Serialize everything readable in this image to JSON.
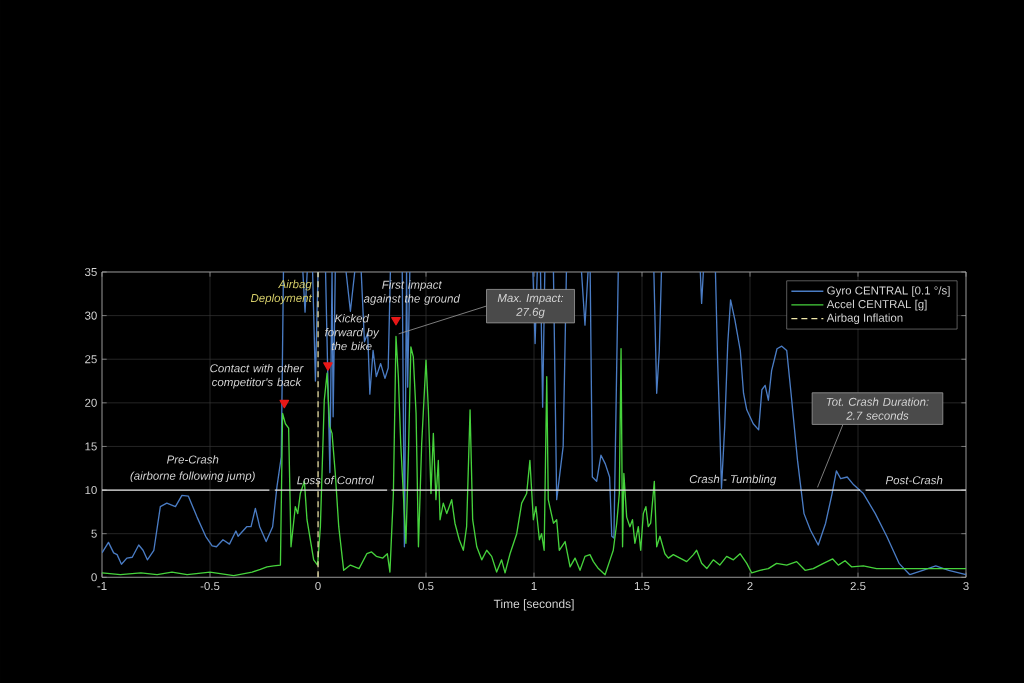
{
  "chart_data": {
    "type": "line",
    "xlabel": "Time [seconds]",
    "xlim": [
      -1,
      3
    ],
    "xticks": [
      -1,
      -0.5,
      0,
      0.5,
      1,
      1.5,
      2,
      2.5,
      3
    ],
    "ylim": [
      0,
      35
    ],
    "yticks": [
      0,
      5,
      10,
      15,
      20,
      25,
      30,
      35
    ],
    "grid": true,
    "legend": "top right",
    "series": [
      {
        "name": "Gyro CENTRAL [0.1 °/s]",
        "color": "#4a7cc4",
        "x": [
          -1,
          -0.97,
          -0.946,
          -0.93,
          -0.91,
          -0.885,
          -0.86,
          -0.83,
          -0.81,
          -0.79,
          -0.76,
          -0.73,
          -0.7,
          -0.66,
          -0.63,
          -0.6,
          -0.56,
          -0.52,
          -0.49,
          -0.47,
          -0.44,
          -0.41,
          -0.38,
          -0.37,
          -0.33,
          -0.31,
          -0.29,
          -0.27,
          -0.24,
          -0.21,
          -0.19,
          -0.17,
          -0.16,
          -0.155,
          -0.07,
          -0.06,
          -0.05,
          -0.04,
          -0.025,
          -0.012,
          0.0,
          0.01,
          0.035,
          0.055,
          0.065,
          0.07,
          0.08,
          0.09,
          0.13,
          0.15,
          0.17,
          0.18,
          0.2,
          0.215,
          0.23,
          0.24,
          0.255,
          0.27,
          0.29,
          0.31,
          0.325,
          0.335,
          0.34,
          0.39,
          0.4,
          0.41,
          0.415,
          0.425,
          0.43,
          0.995,
          1.005,
          1.015,
          1.02,
          1.03,
          1.04,
          1.05,
          1.06,
          1.09,
          1.105,
          1.135,
          1.15,
          1.16,
          1.22,
          1.236,
          1.25,
          1.255,
          1.26,
          1.27,
          1.29,
          1.31,
          1.33,
          1.35,
          1.36,
          1.37,
          1.39,
          1.4,
          1.555,
          1.568,
          1.58,
          1.59,
          1.6,
          1.77,
          1.776,
          1.784,
          1.788,
          1.84,
          1.85,
          1.86,
          1.868,
          1.883,
          1.897,
          1.91,
          1.93,
          1.955,
          1.97,
          1.985,
          2.015,
          2.04,
          2.055,
          2.07,
          2.085,
          2.1,
          2.125,
          2.147,
          2.17,
          2.19,
          2.22,
          2.25,
          2.28,
          2.316,
          2.35,
          2.38,
          2.4,
          2.42,
          2.45,
          2.48,
          2.525,
          2.58,
          2.633,
          2.69,
          2.74,
          2.8,
          2.86,
          2.92,
          3.0
        ],
        "values": [
          2.8,
          4.0,
          2.8,
          2.6,
          1.5,
          2.2,
          2.3,
          3.7,
          3.1,
          2.0,
          3.1,
          8.1,
          8.5,
          8.1,
          9.4,
          9.3,
          6.9,
          4.7,
          3.6,
          3.5,
          4.3,
          3.8,
          5.3,
          4.7,
          5.8,
          5.8,
          7.9,
          5.8,
          4.1,
          5.8,
          10.4,
          13.8,
          35,
          null,
          35,
          30.4,
          35,
          null,
          35,
          22.5,
          35,
          null,
          35,
          12,
          35,
          18.4,
          35,
          null,
          35,
          30.5,
          35,
          null,
          35,
          27,
          28,
          21,
          26,
          23,
          24.5,
          22.8,
          24,
          35,
          null,
          35,
          3.5,
          35,
          21.8,
          35,
          null,
          35,
          26.8,
          35,
          null,
          35,
          19.5,
          35,
          null,
          35,
          8.9,
          15,
          35,
          null,
          35,
          28.9,
          35,
          null,
          35,
          11.5,
          11,
          14,
          13,
          11.5,
          4.7,
          4.5,
          35,
          null,
          35,
          21.1,
          26,
          35,
          null,
          35,
          31.4,
          35,
          null,
          35,
          24.9,
          17.3,
          10.2,
          17.3,
          26.8,
          31.8,
          29.5,
          26,
          21.1,
          19.2,
          17.6,
          16.9,
          21.5,
          22,
          20.3,
          23.7,
          26.2,
          26.5,
          26,
          21.1,
          13.4,
          7.3,
          5.4,
          3.7,
          6.2,
          9.6,
          12.2,
          11.3,
          11.5,
          10.6,
          9.6,
          7.3,
          4.7,
          1.6,
          0.3,
          0.8,
          1.3,
          0.8,
          0.3
        ]
      },
      {
        "name": "Accel CENTRAL [g]",
        "color": "#46d23c",
        "x": [
          -1,
          -0.915,
          -0.82,
          -0.745,
          -0.676,
          -0.606,
          -0.5,
          -0.39,
          -0.305,
          -0.267,
          -0.236,
          -0.205,
          -0.174,
          -0.164,
          -0.151,
          -0.136,
          -0.125,
          -0.105,
          -0.094,
          -0.082,
          -0.063,
          -0.051,
          -0.02,
          -0.002,
          0.011,
          0.029,
          0.042,
          0.054,
          0.065,
          0.08,
          0.096,
          0.119,
          0.15,
          0.19,
          0.226,
          0.248,
          0.27,
          0.3,
          0.321,
          0.333,
          0.349,
          0.361,
          0.372,
          0.383,
          0.395,
          0.407,
          0.418,
          0.43,
          0.441,
          0.454,
          0.465,
          0.48,
          0.5,
          0.511,
          0.523,
          0.534,
          0.546,
          0.557,
          0.565,
          0.58,
          0.596,
          0.619,
          0.634,
          0.654,
          0.673,
          0.688,
          0.704,
          0.716,
          0.735,
          0.758,
          0.781,
          0.804,
          0.827,
          0.85,
          0.866,
          0.889,
          0.92,
          0.943,
          0.966,
          0.981,
          0.997,
          1.009,
          1.025,
          1.035,
          1.047,
          1.059,
          1.066,
          1.09,
          1.105,
          1.117,
          1.144,
          1.167,
          1.19,
          1.213,
          1.236,
          1.259,
          1.275,
          1.298,
          1.329,
          1.352,
          1.367,
          1.383,
          1.395,
          1.403,
          1.41,
          1.416,
          1.429,
          1.444,
          1.456,
          1.467,
          1.483,
          1.494,
          1.506,
          1.518,
          1.529,
          1.54,
          1.557,
          1.568,
          1.583,
          1.606,
          1.622,
          1.645,
          1.676,
          1.707,
          1.738,
          1.753,
          1.776,
          1.8,
          1.83,
          1.86,
          1.892,
          1.923,
          1.954,
          1.985,
          2.008,
          2.046,
          2.085,
          2.123,
          2.17,
          2.216,
          2.255,
          2.293,
          2.34,
          2.383,
          2.409,
          2.44,
          2.47,
          2.525,
          2.586,
          2.74,
          2.895,
          3.0
        ],
        "values": [
          0.5,
          0.3,
          0.5,
          0.3,
          0.6,
          0.3,
          0.6,
          0.2,
          0.6,
          0.9,
          1.2,
          1.3,
          1.4,
          18.8,
          17.6,
          17.1,
          3.5,
          8.1,
          7.3,
          9.6,
          11.0,
          6.6,
          2.0,
          1.4,
          5.8,
          20.3,
          23.4,
          17.3,
          16.5,
          11.9,
          5.8,
          0.8,
          1.4,
          1.0,
          2.7,
          2.9,
          2.4,
          2.2,
          2.7,
          0.6,
          9.6,
          27.6,
          23.0,
          15.3,
          9.6,
          3.9,
          13.4,
          26.4,
          25.3,
          18.8,
          3.5,
          15.3,
          24.9,
          19.2,
          9.6,
          16.5,
          8.9,
          13.4,
          6.6,
          8.5,
          7.3,
          8.9,
          6.2,
          4.3,
          3.1,
          5.8,
          19.2,
          6.6,
          3.5,
          2.0,
          3.1,
          2.4,
          0.6,
          2.0,
          0.5,
          2.7,
          5.0,
          8.5,
          9.6,
          13.4,
          6.6,
          8.1,
          4.3,
          5.0,
          3.1,
          23.0,
          8.9,
          6.2,
          6.6,
          3.1,
          4.1,
          1.2,
          2.2,
          0.8,
          2.4,
          2.6,
          1.8,
          1.0,
          0.3,
          2.0,
          3.1,
          6.2,
          9.6,
          26.2,
          3.5,
          11.9,
          6.9,
          5.8,
          6.6,
          3.9,
          5.8,
          3.1,
          7.3,
          8.1,
          5.8,
          6.2,
          11.0,
          3.5,
          4.7,
          2.7,
          2.2,
          2.6,
          2.2,
          1.8,
          2.6,
          3.1,
          1.6,
          1.0,
          2.0,
          1.4,
          2.4,
          2.0,
          2.7,
          1.6,
          0.5,
          0.8,
          1.0,
          1.6,
          1.4,
          1.8,
          0.8,
          1.0,
          1.6,
          2.1,
          1.4,
          1.9,
          1.2,
          1.3,
          1.0,
          1.0,
          1.0,
          1.0
        ]
      },
      {
        "name": "Airbag Inflation",
        "color": "#f0e6a8",
        "line_style": "dashed",
        "x": [
          0,
          0
        ],
        "values": [
          0,
          35
        ]
      },
      {
        "color": "#e6e6e6",
        "x": [
          -1,
          -0.225,
          -0.21,
          -0.2,
          0.32,
          0.33,
          0.34,
          2.51,
          2.52,
          2.535,
          3
        ],
        "values": [
          10,
          10,
          null,
          10,
          10,
          null,
          10,
          10,
          null,
          10,
          10
        ]
      },
      {
        "type": "scatter",
        "marker": "triangle",
        "color": "#e81818",
        "x": [
          -0.156,
          0.046,
          0.361
        ],
        "values": [
          20,
          24.3,
          29.5
        ]
      }
    ],
    "annotations": [
      {
        "text": "Airbag Deployment",
        "x": 0,
        "y": 32.7
      },
      {
        "text": "Contact with other competitor's back",
        "x": -0.156,
        "y": 20
      },
      {
        "text": "Kicked forward by the bike",
        "x": 0.046,
        "y": 24.3
      },
      {
        "text": "First impact against the ground",
        "x": 0.361,
        "y": 29.5
      },
      {
        "text": "Max. Impact: 27.6g",
        "x": 0.361,
        "y": 27.6
      },
      {
        "text": "Pre-Crash",
        "x": -0.58,
        "y": 10
      },
      {
        "text": "(airborne following jump)",
        "x": -0.58,
        "y": 10
      },
      {
        "text": "Loss of Control",
        "x": 0.08,
        "y": 10
      },
      {
        "text": "Crash - Tumbling",
        "x": 1.92,
        "y": 10
      },
      {
        "text": "Post-Crash",
        "x": 2.76,
        "y": 10
      },
      {
        "text": "Tot. Crash Duration: 2.7 seconds",
        "x": 2.3,
        "y": 10
      }
    ]
  }
}
